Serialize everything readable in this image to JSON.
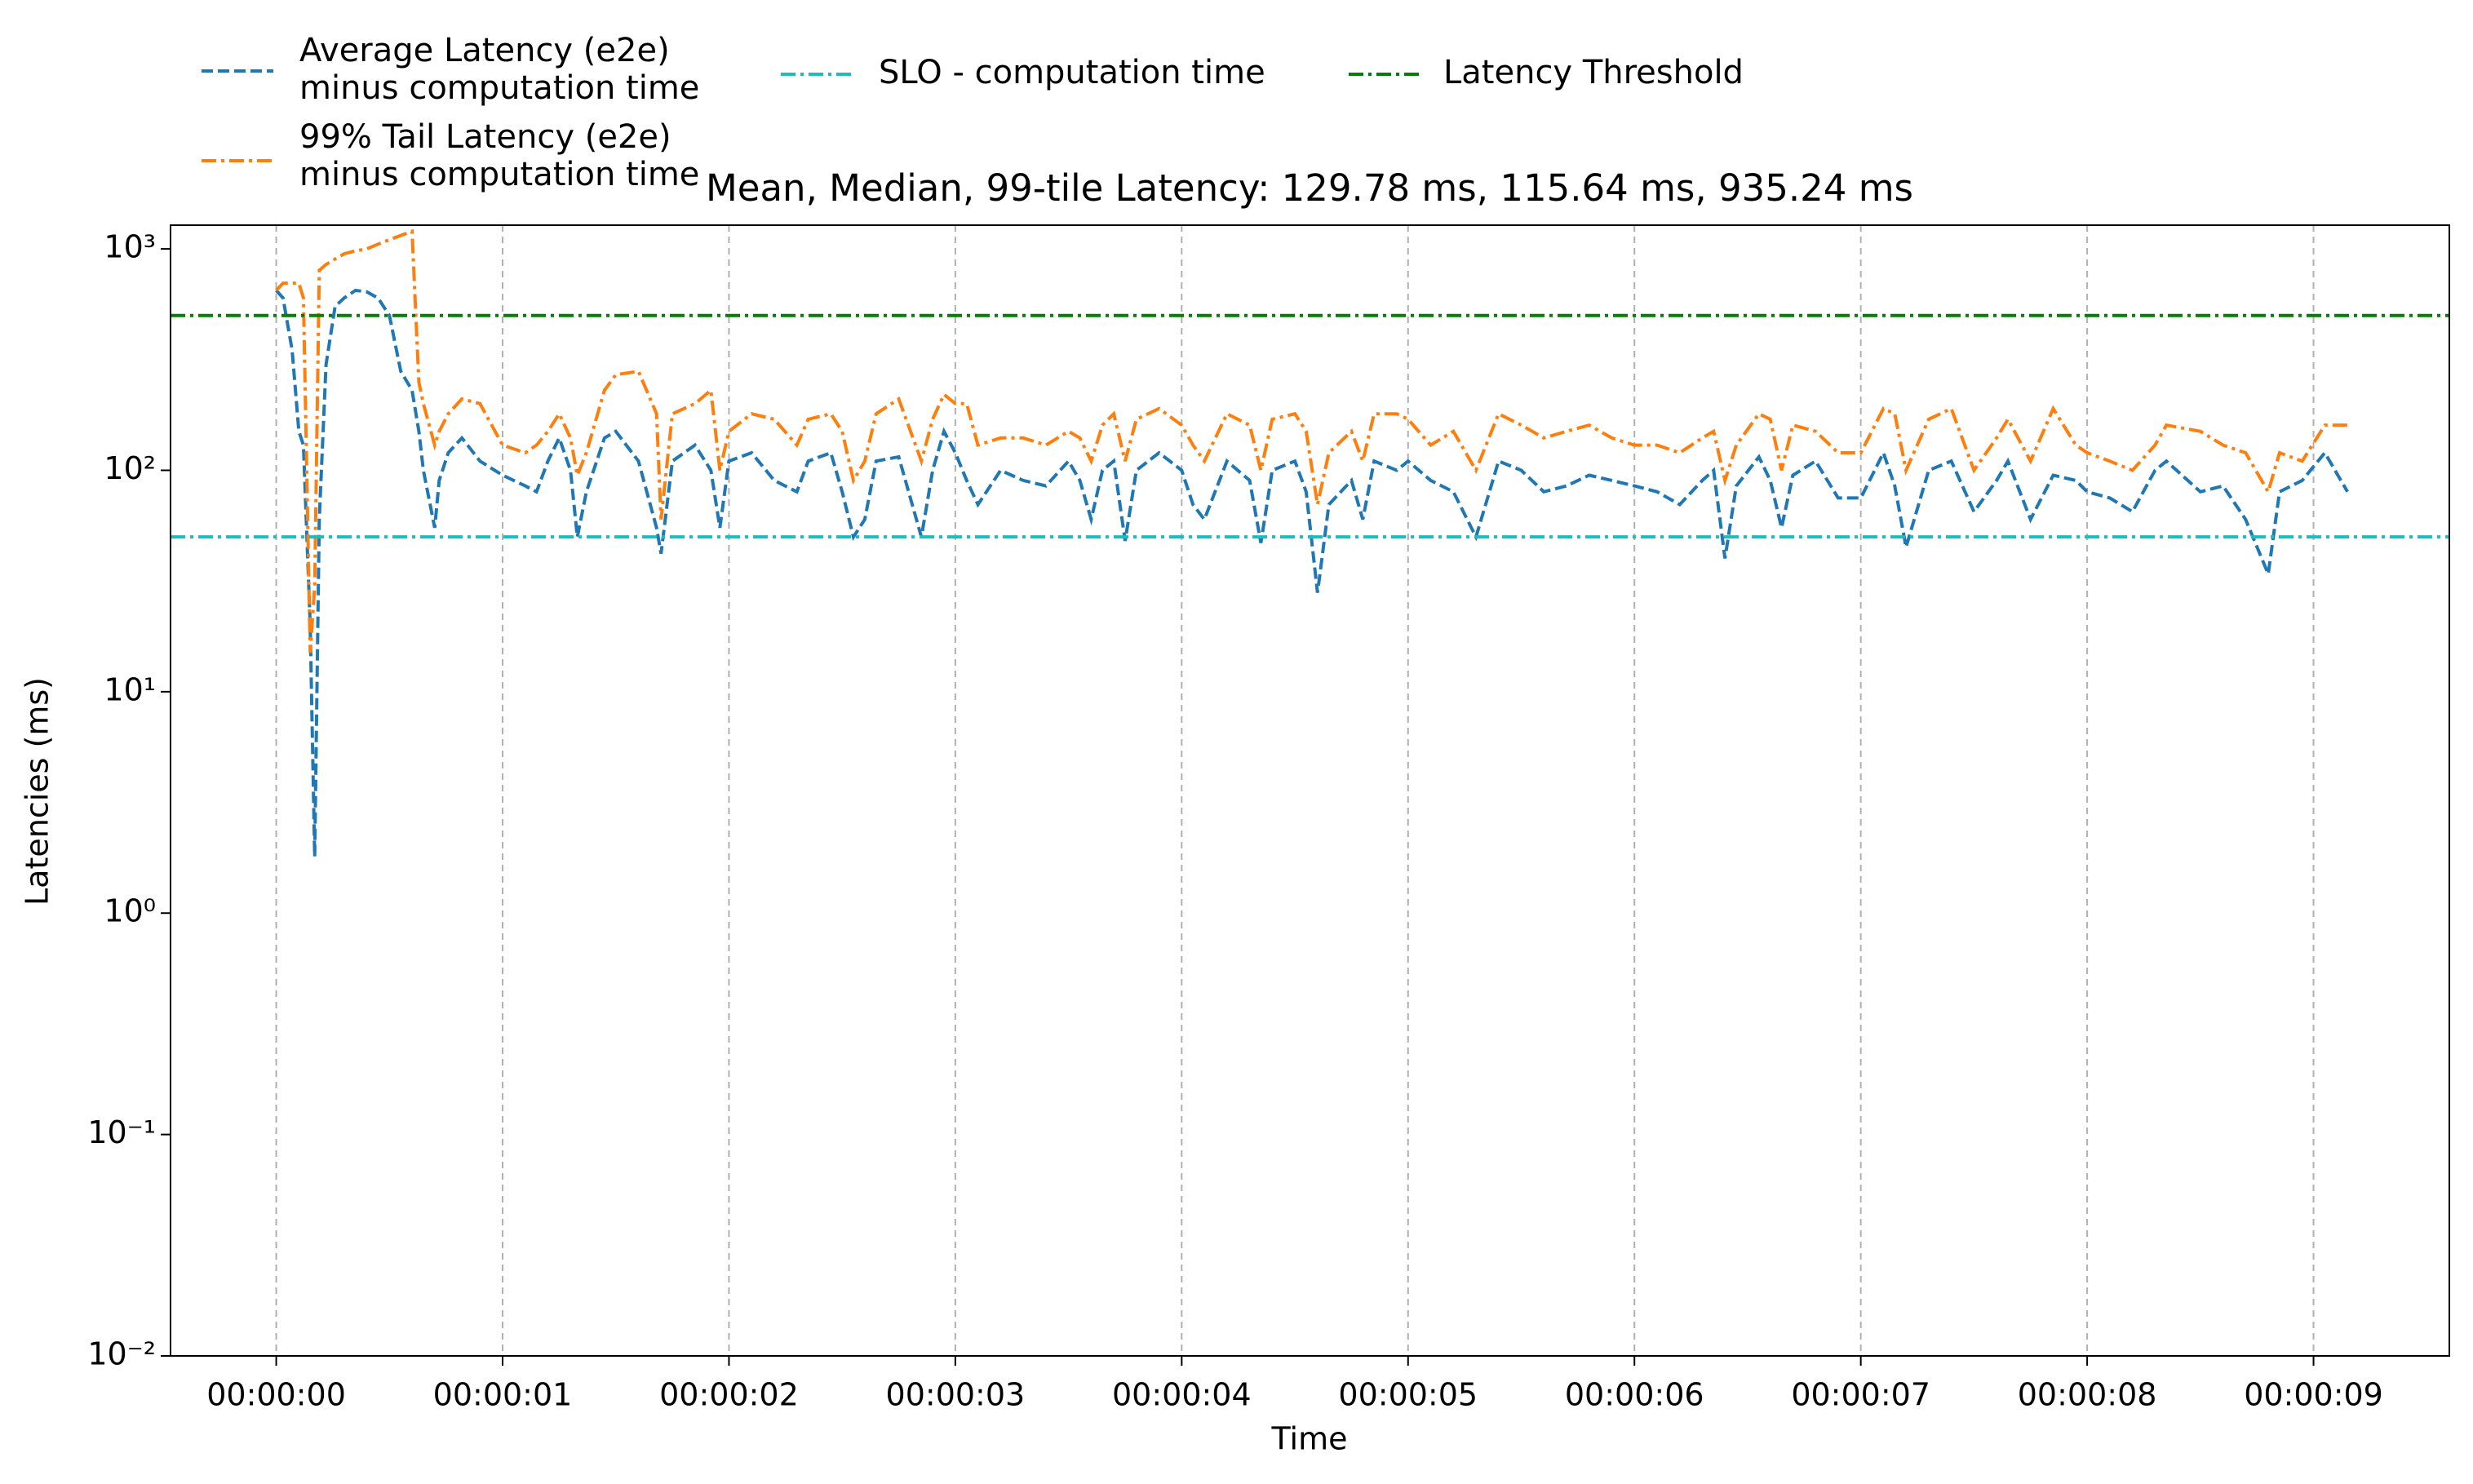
{
  "chart_data": {
    "type": "line",
    "title": "Mean, Median, 99-tile Latency: 129.78 ms, 115.64 ms, 935.24 ms",
    "xlabel": "Time",
    "ylabel": "Latencies (ms)",
    "ylabel_color": "#d62728",
    "yscale": "log",
    "grid": "x",
    "xlim": [
      -0.467,
      9.6
    ],
    "xticks": [
      {
        "value": 0,
        "label": "00:00:00"
      },
      {
        "value": 1,
        "label": "00:00:01"
      },
      {
        "value": 2,
        "label": "00:00:02"
      },
      {
        "value": 3,
        "label": "00:00:03"
      },
      {
        "value": 4,
        "label": "00:00:04"
      },
      {
        "value": 5,
        "label": "00:00:05"
      },
      {
        "value": 6,
        "label": "00:00:06"
      },
      {
        "value": 7,
        "label": "00:00:07"
      },
      {
        "value": 8,
        "label": "00:00:08"
      },
      {
        "value": 9,
        "label": "00:00:09"
      }
    ],
    "ylim": [
      0.01,
      1280
    ],
    "yticks": [
      {
        "value": 0.01,
        "label": "10⁻²"
      },
      {
        "value": 0.1,
        "label": "10⁻¹"
      },
      {
        "value": 1,
        "label": "10⁰"
      },
      {
        "value": 10,
        "label": "10¹"
      },
      {
        "value": 100,
        "label": "10²"
      },
      {
        "value": 1000,
        "label": "10³"
      }
    ],
    "x": [
      0,
      0.03,
      0.07,
      0.1,
      0.12,
      0.15,
      0.17,
      0.19,
      0.22,
      0.26,
      0.3,
      0.35,
      0.4,
      0.45,
      0.5,
      0.55,
      0.6,
      0.63,
      0.65,
      0.7,
      0.72,
      0.76,
      0.82,
      0.9,
      1.0,
      1.1,
      1.15,
      1.2,
      1.25,
      1.3,
      1.33,
      1.37,
      1.45,
      1.5,
      1.6,
      1.68,
      1.7,
      1.75,
      1.85,
      1.92,
      1.96,
      2.0,
      2.1,
      2.2,
      2.3,
      2.35,
      2.45,
      2.5,
      2.55,
      2.6,
      2.65,
      2.75,
      2.85,
      2.9,
      2.95,
      3.0,
      3.05,
      3.1,
      3.2,
      3.3,
      3.4,
      3.5,
      3.55,
      3.6,
      3.65,
      3.7,
      3.75,
      3.8,
      3.9,
      4.0,
      4.05,
      4.1,
      4.2,
      4.3,
      4.35,
      4.4,
      4.5,
      4.55,
      4.6,
      4.65,
      4.75,
      4.8,
      4.85,
      4.95,
      5.0,
      5.1,
      5.2,
      5.3,
      5.4,
      5.5,
      5.6,
      5.7,
      5.8,
      5.9,
      6.0,
      6.1,
      6.2,
      6.3,
      6.35,
      6.4,
      6.45,
      6.55,
      6.6,
      6.65,
      6.7,
      6.8,
      6.9,
      7.0,
      7.1,
      7.15,
      7.2,
      7.3,
      7.4,
      7.5,
      7.6,
      7.65,
      7.75,
      7.85,
      7.95,
      8.0,
      8.1,
      8.2,
      8.3,
      8.35,
      8.5,
      8.6,
      8.7,
      8.8,
      8.85,
      8.95,
      9.05,
      9.15
    ],
    "series": [
      {
        "name": [
          "Average Latency (e2e)",
          "minus computation time"
        ],
        "color": "#1f77b4",
        "dash": "dashed",
        "values": [
          650,
          600,
          350,
          150,
          130,
          20,
          1.8,
          60,
          300,
          550,
          600,
          650,
          640,
          600,
          500,
          280,
          230,
          150,
          100,
          55,
          90,
          120,
          140,
          110,
          95,
          85,
          80,
          110,
          140,
          100,
          50,
          80,
          140,
          150,
          110,
          55,
          42,
          110,
          130,
          100,
          55,
          110,
          120,
          90,
          80,
          110,
          120,
          80,
          50,
          60,
          110,
          115,
          50,
          100,
          150,
          120,
          90,
          70,
          100,
          90,
          85,
          110,
          90,
          60,
          100,
          110,
          48,
          100,
          120,
          100,
          70,
          60,
          110,
          90,
          47,
          100,
          110,
          80,
          28,
          70,
          90,
          60,
          110,
          100,
          110,
          90,
          80,
          50,
          110,
          100,
          80,
          85,
          95,
          90,
          85,
          80,
          70,
          90,
          100,
          40,
          85,
          115,
          90,
          55,
          95,
          110,
          75,
          75,
          120,
          85,
          45,
          100,
          110,
          65,
          90,
          110,
          60,
          95,
          90,
          80,
          75,
          65,
          100,
          110,
          80,
          85,
          60,
          34,
          80,
          90,
          120,
          80
        ]
      },
      {
        "name": [
          "99% Tail Latency (e2e)",
          "minus computation time"
        ],
        "color": "#ff7f0e",
        "dash": "dashdot",
        "values": [
          650,
          700,
          700,
          700,
          600,
          15,
          30,
          800,
          850,
          900,
          950,
          980,
          1000,
          1050,
          1100,
          1150,
          1200,
          250,
          200,
          130,
          150,
          180,
          210,
          200,
          130,
          120,
          130,
          150,
          180,
          140,
          95,
          120,
          230,
          270,
          280,
          180,
          60,
          180,
          200,
          230,
          100,
          150,
          180,
          170,
          130,
          170,
          180,
          150,
          90,
          110,
          180,
          210,
          110,
          170,
          220,
          200,
          200,
          130,
          140,
          140,
          130,
          150,
          140,
          110,
          160,
          180,
          110,
          170,
          190,
          160,
          130,
          110,
          180,
          160,
          100,
          170,
          180,
          150,
          70,
          120,
          150,
          110,
          180,
          180,
          170,
          130,
          150,
          100,
          180,
          160,
          140,
          150,
          160,
          140,
          130,
          130,
          120,
          140,
          150,
          90,
          130,
          180,
          170,
          100,
          160,
          150,
          120,
          120,
          190,
          180,
          100,
          170,
          190,
          100,
          140,
          170,
          110,
          190,
          130,
          120,
          110,
          100,
          130,
          160,
          150,
          130,
          120,
          80,
          120,
          110,
          160,
          160
        ]
      }
    ],
    "hlines": [
      {
        "name": "SLO - computation time",
        "color": "#17bfbf",
        "dash": "dashdot",
        "value": 50
      },
      {
        "name": "Latency Threshold",
        "color": "#008000",
        "dash": "dashdot",
        "value": 500
      }
    ]
  }
}
